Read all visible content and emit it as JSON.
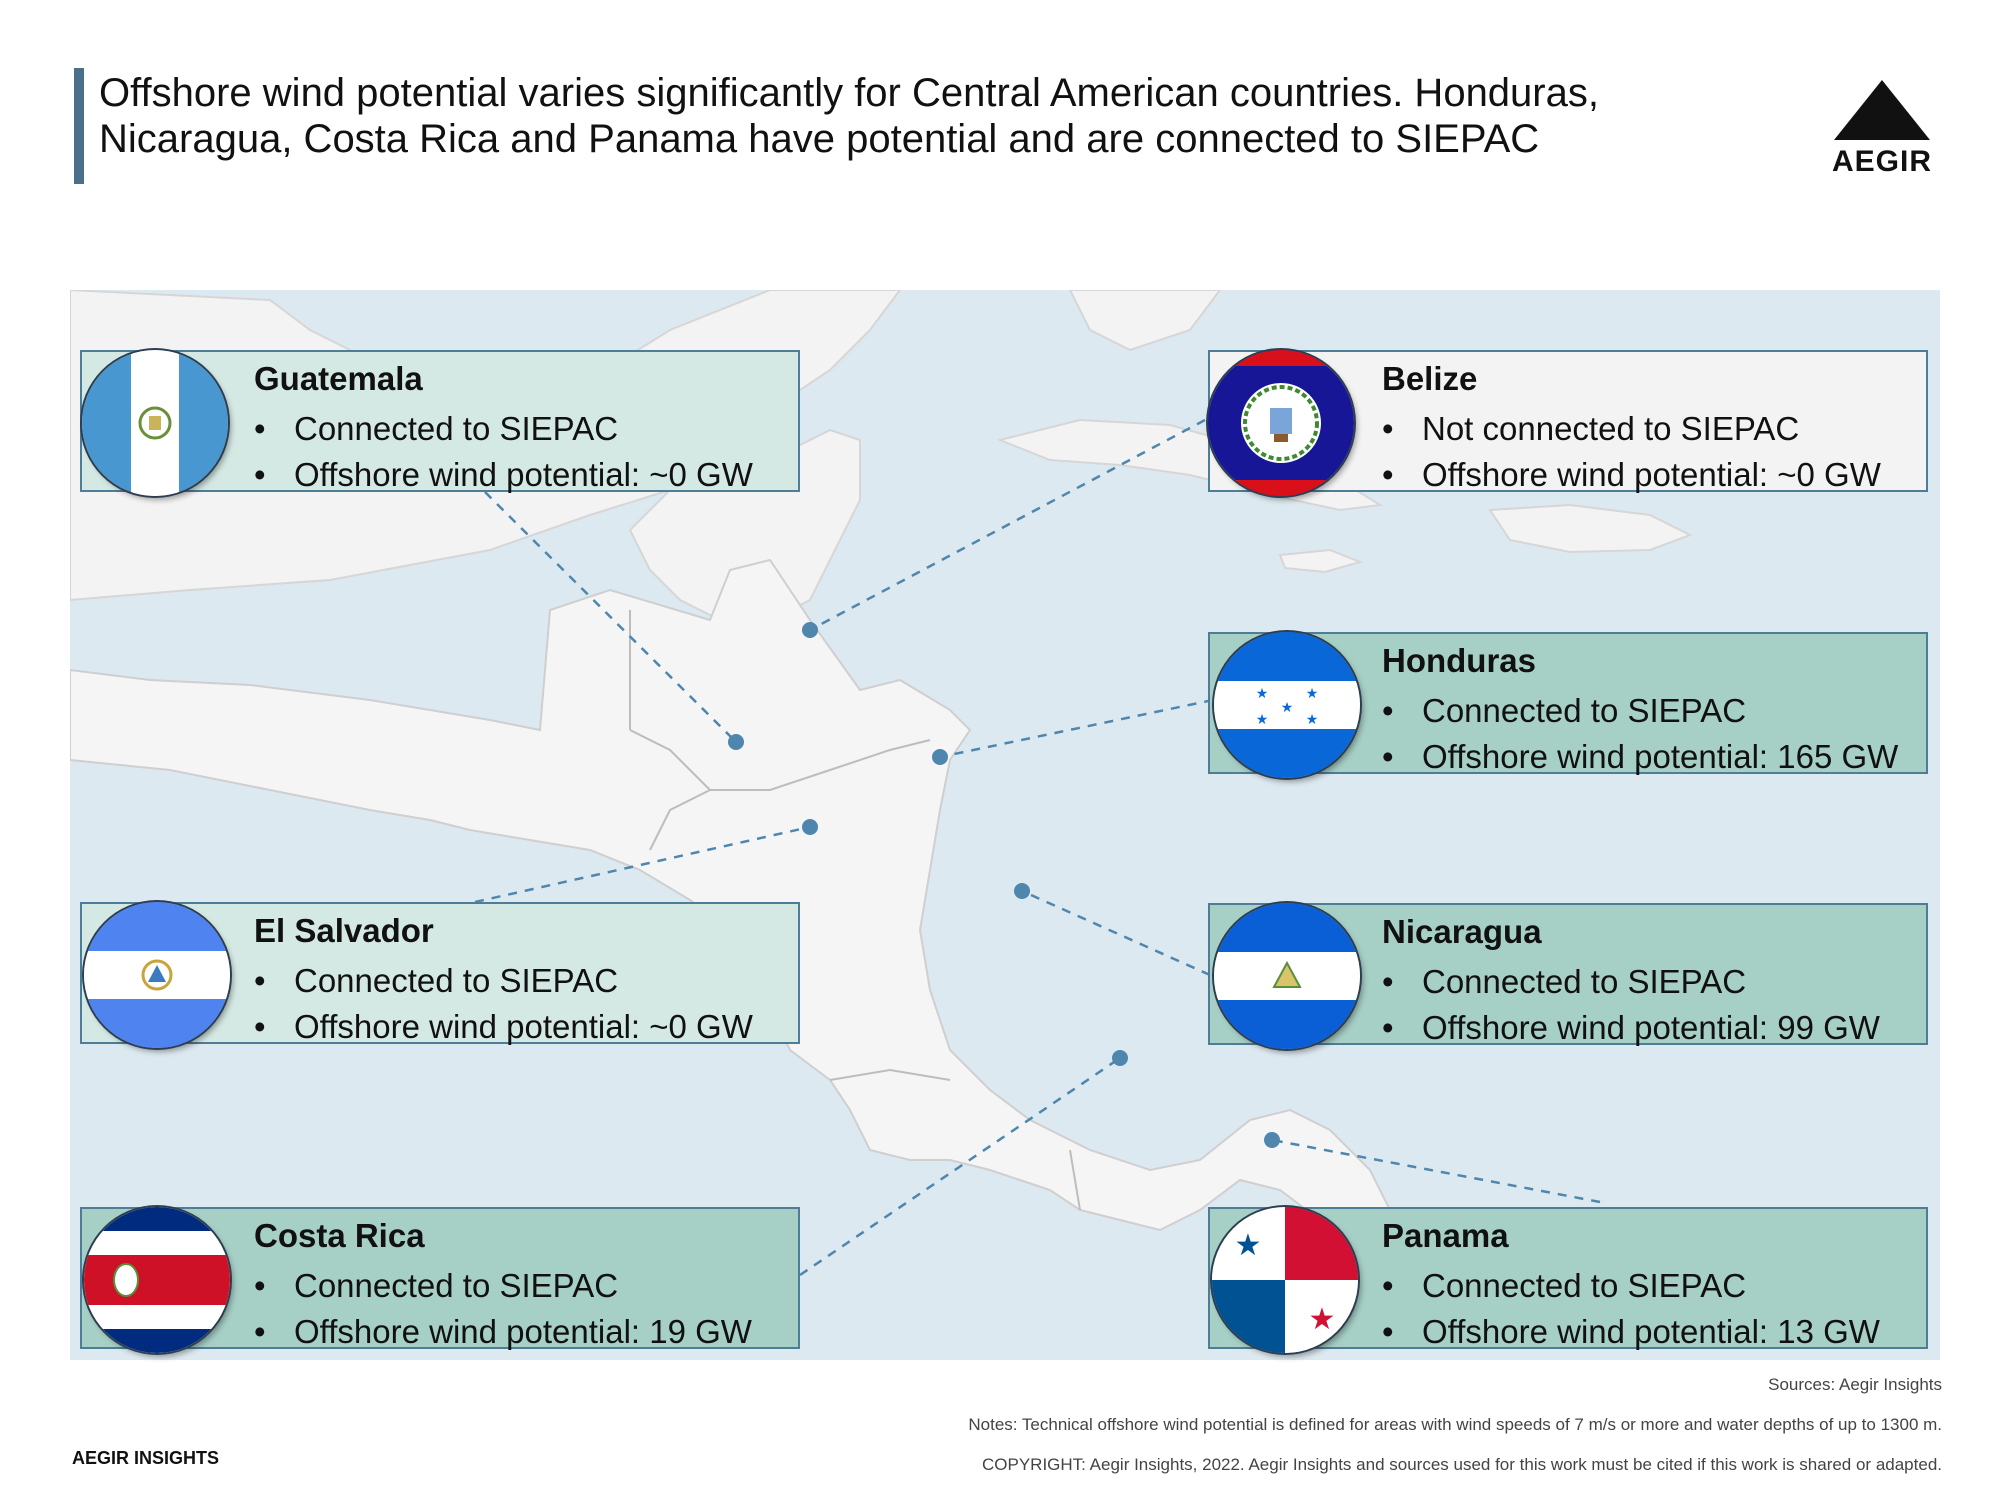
{
  "header": {
    "title_line1": "Offshore wind potential varies significantly for Central American countries. Honduras,",
    "title_line2": "Nicaragua, Costa Rica and Panama have potential and are connected to SIEPAC"
  },
  "brand": {
    "logo_text": "AEGIR",
    "footer_name": "AEGIR INSIGHTS"
  },
  "countries": {
    "guatemala": {
      "name": "Guatemala",
      "siepac": "Connected to SIEPAC",
      "potential": "Offshore wind potential: ~0 GW"
    },
    "belize": {
      "name": "Belize",
      "siepac": "Not connected to SIEPAC",
      "potential": "Offshore wind potential: ~0 GW"
    },
    "honduras": {
      "name": "Honduras",
      "siepac": "Connected to SIEPAC",
      "potential": "Offshore wind potential: 165 GW"
    },
    "el_salvador": {
      "name": "El Salvador",
      "siepac": "Connected to SIEPAC",
      "potential": "Offshore wind potential: ~0 GW"
    },
    "nicaragua": {
      "name": "Nicaragua",
      "siepac": "Connected to SIEPAC",
      "potential": "Offshore wind potential: 99 GW"
    },
    "costa_rica": {
      "name": "Costa Rica",
      "siepac": "Connected to SIEPAC",
      "potential": "Offshore wind potential: 19 GW"
    },
    "panama": {
      "name": "Panama",
      "siepac": "Connected to SIEPAC",
      "potential": "Offshore wind potential: 13 GW"
    }
  },
  "footer": {
    "sources": "Sources: Aegir Insights",
    "notes": "Notes: Technical offshore wind potential is defined for areas with wind speeds of 7 m/s or more and water depths of up to 1300 m.",
    "copyright": "COPYRIGHT: Aegir Insights, 2022. Aegir Insights and sources used for this work must be cited if this work is shared or adapted."
  },
  "colors": {
    "accent_bar": "#4a6f8a",
    "sea": "#dde9f0",
    "land": "#f5f5f5",
    "card_light": "#d5e9e4",
    "card_mid": "#a6cfc6",
    "card_grey": "#f3f3f3",
    "connector": "#4e86ad"
  }
}
